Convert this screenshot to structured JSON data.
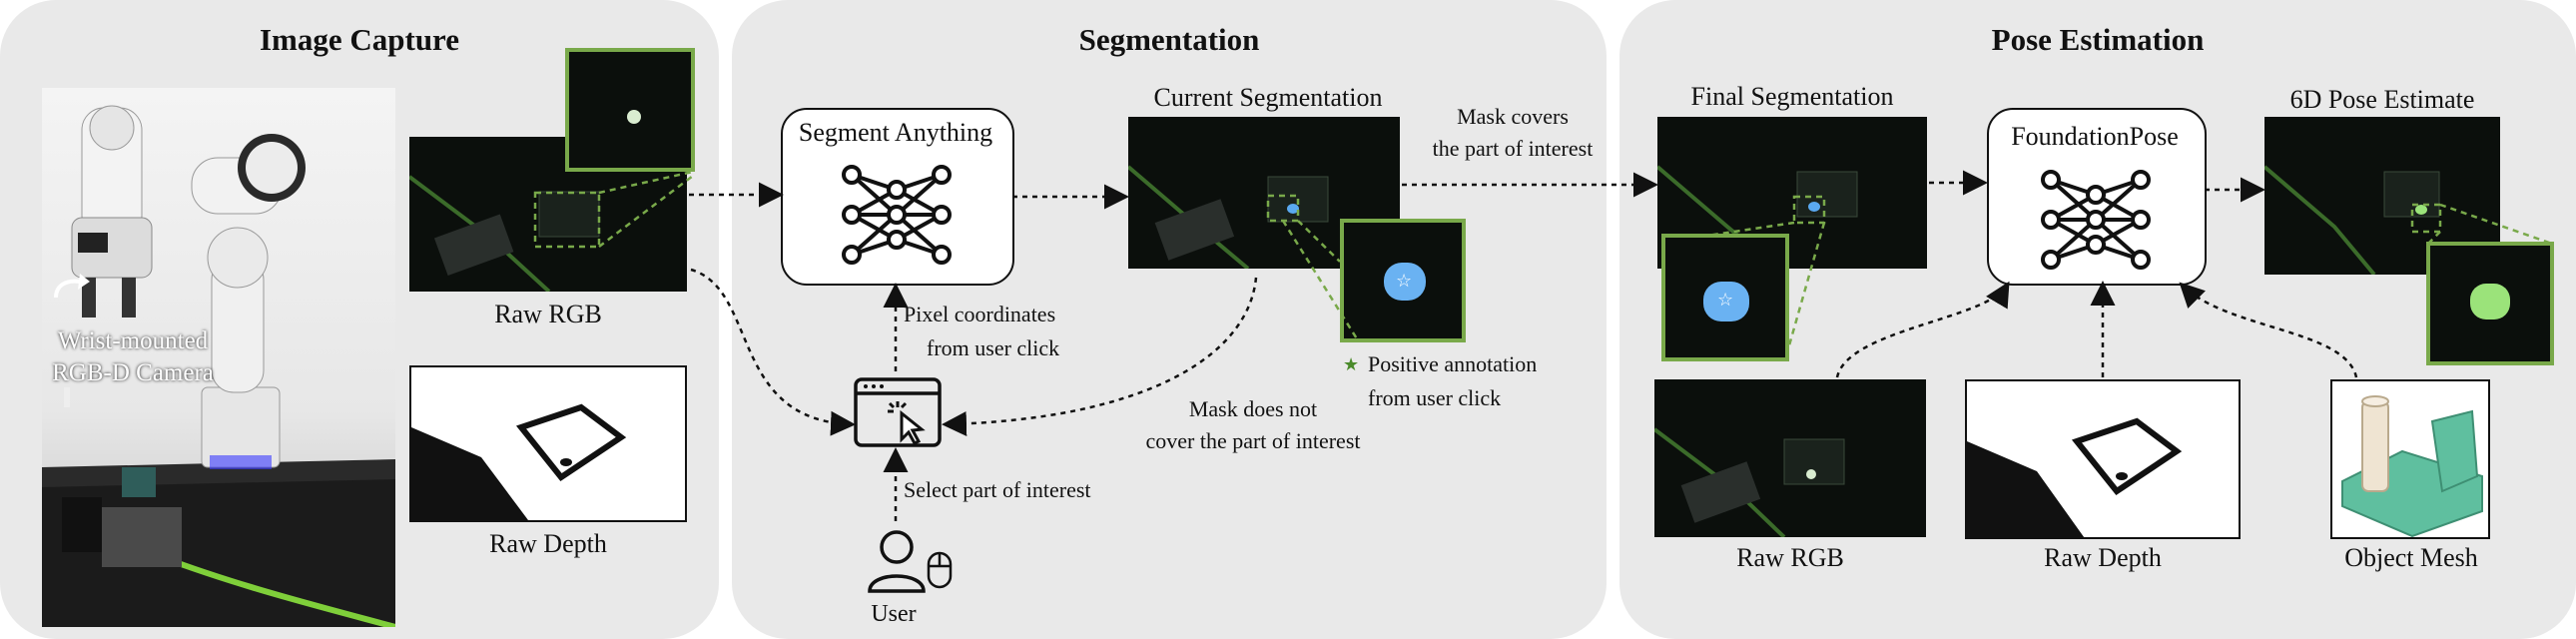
{
  "colors": {
    "panel_bg": "#e9e9e9",
    "accent_green": "#79a94a",
    "dark_image": "#0b0f0c",
    "mesh_teal": "#5fbf9f",
    "mesh_cream": "#efe4d2"
  },
  "panels": {
    "capture": {
      "title": "Image Capture"
    },
    "segmentation": {
      "title": "Segmentation"
    },
    "pose": {
      "title": "Pose Estimation"
    }
  },
  "capture": {
    "camera_label_line1": "Wrist-mounted",
    "camera_label_line2": "RGB-D Camera",
    "raw_rgb": "Raw RGB",
    "raw_depth": "Raw Depth"
  },
  "segmentation": {
    "segment_anything": "Segment Anything",
    "current_segmentation": "Current Segmentation",
    "mask_covers_1": "Mask covers",
    "mask_covers_2": "the part of interest",
    "pixel_coords_1": "Pixel coordinates",
    "pixel_coords_2": "from user click",
    "mask_not_1": "Mask does not",
    "mask_not_2": "cover the part of interest",
    "positive_1": "Positive annotation",
    "positive_2": "from user click",
    "select_part": "Select part of interest",
    "user": "User"
  },
  "pose": {
    "final_segmentation": "Final Segmentation",
    "foundation_pose": "FoundationPose",
    "pose_estimate": "6D Pose Estimate",
    "raw_rgb": "Raw RGB",
    "raw_depth": "Raw Depth",
    "object_mesh": "Object Mesh"
  },
  "icons": [
    "neural-network-icon",
    "click-window-icon",
    "user-icon",
    "mouse-icon",
    "star-icon"
  ]
}
